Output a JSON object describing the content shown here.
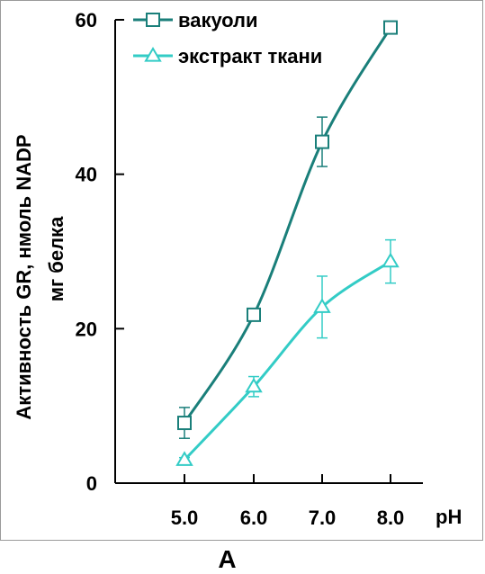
{
  "chart_data": {
    "type": "line",
    "ylabel_line1": "Активность GR, нмоль NADP",
    "ylabel_line2": "мг белка",
    "xlabel": "pH",
    "x": [
      "5.0",
      "6.0",
      "7.0",
      "8.0"
    ],
    "y_ticks": [
      "0",
      "20",
      "40",
      "60"
    ],
    "ylim": [
      0,
      60
    ],
    "grid": false,
    "legend_position": "top-left",
    "series": [
      {
        "name": "вакуоли",
        "marker": "square",
        "color": "#1a7f7a",
        "values": [
          7.8,
          21.8,
          44.2,
          59.0
        ],
        "errors": [
          2.0,
          0.5,
          3.2,
          0.5
        ]
      },
      {
        "name": "экстракт ткани",
        "marker": "triangle",
        "color": "#33ccc6",
        "values": [
          3.0,
          12.5,
          22.8,
          28.7
        ],
        "errors": [
          0.3,
          1.3,
          4.0,
          2.8
        ]
      }
    ]
  },
  "panel_label": "A"
}
